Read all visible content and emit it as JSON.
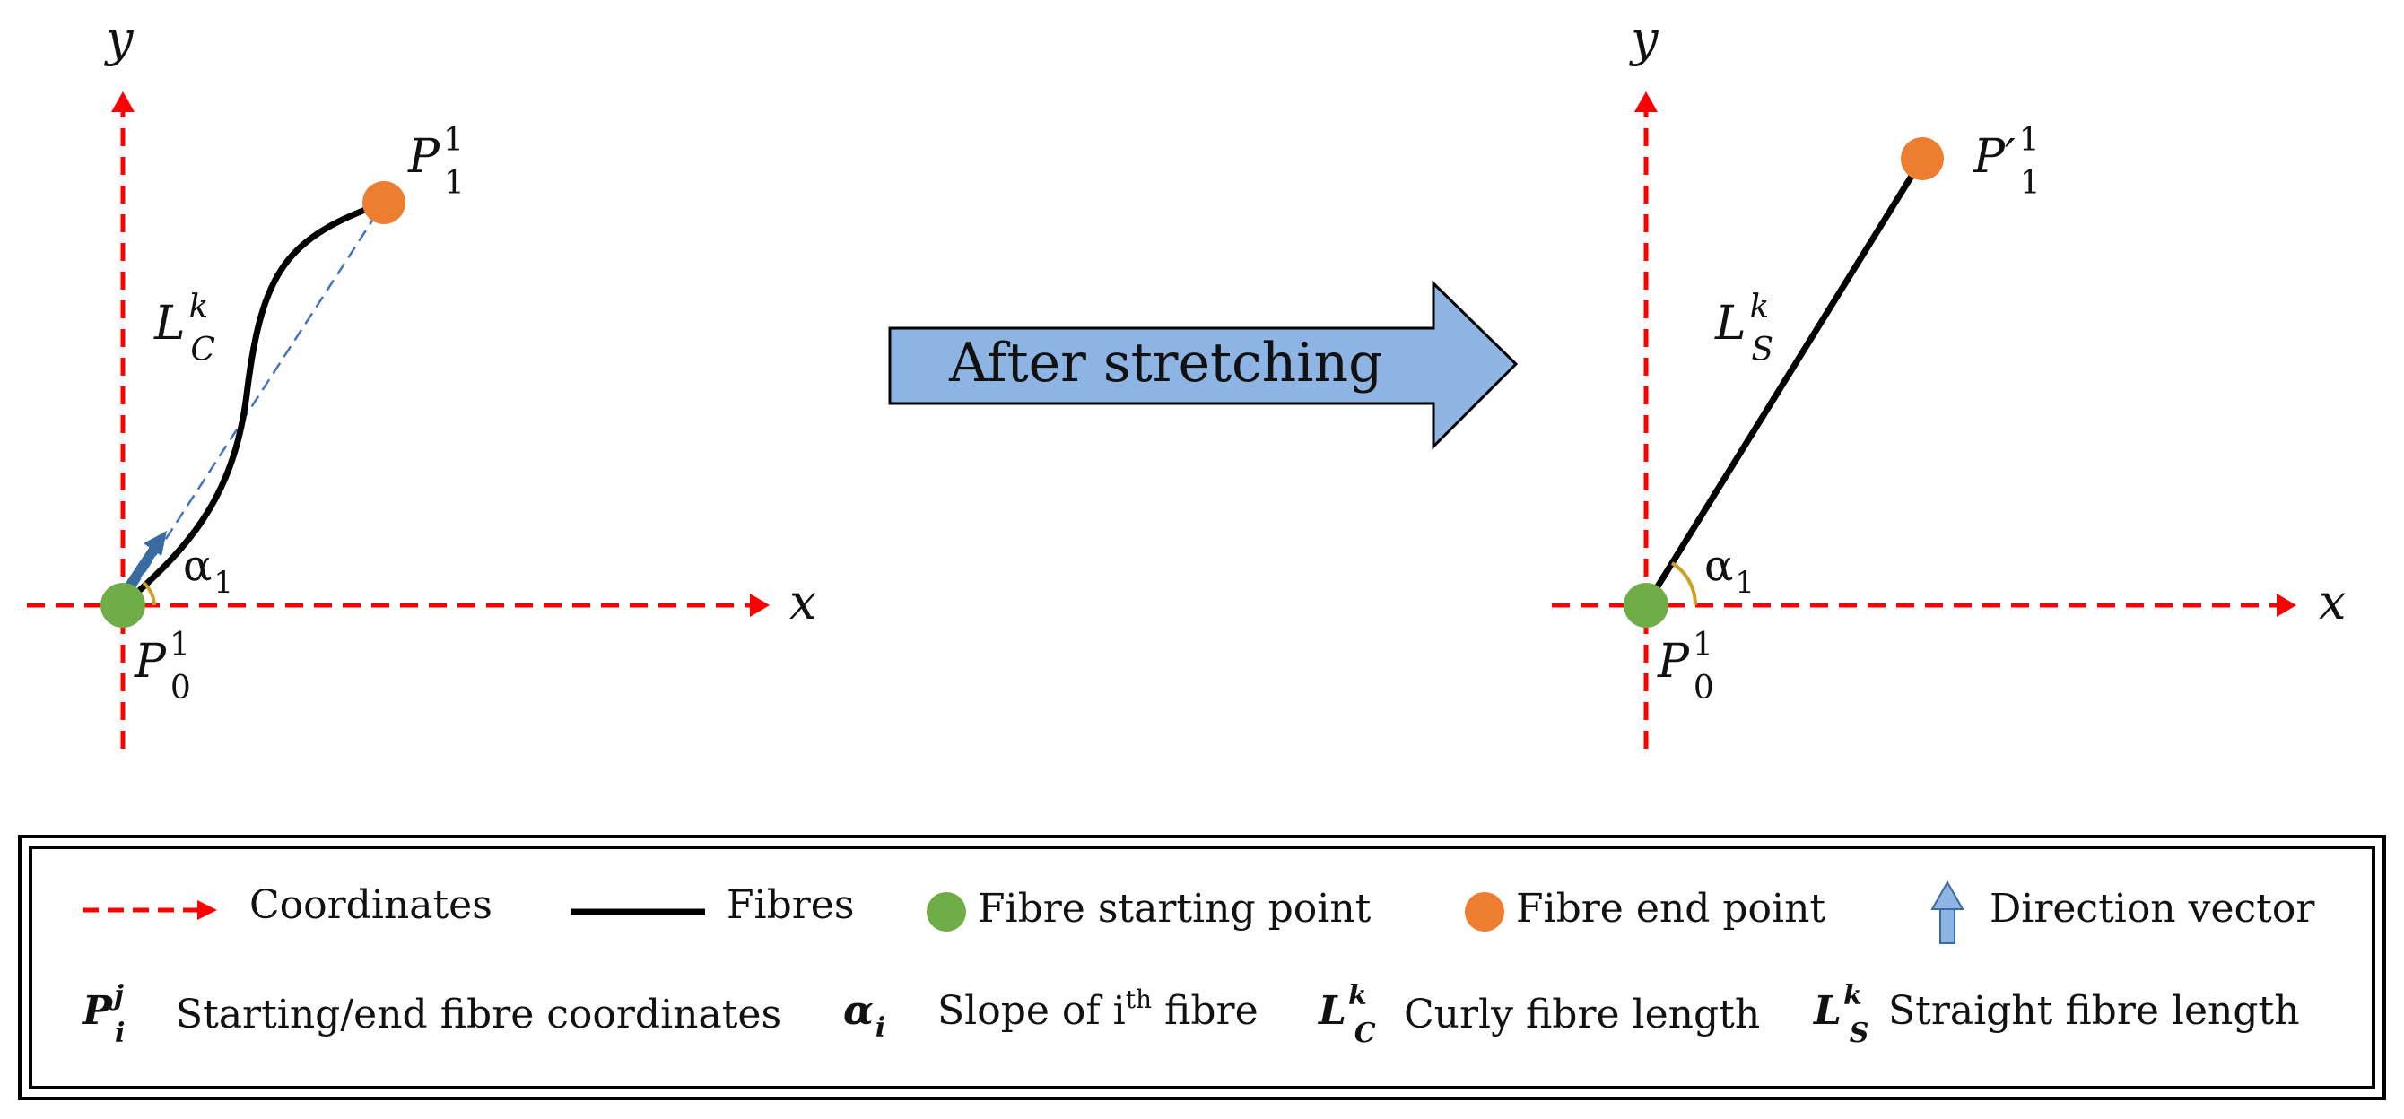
{
  "left_panel": {
    "axis_x": "x",
    "axis_y": "y",
    "end_point": {
      "symbol": "P",
      "sup": "1",
      "sub": "1"
    },
    "start_point": {
      "symbol": "P",
      "sup": "1",
      "sub": "0"
    },
    "length": {
      "symbol": "L",
      "sup": "k",
      "sub": "C"
    },
    "angle": {
      "symbol": "α",
      "sub": "1"
    }
  },
  "arrow": {
    "label": "After stretching"
  },
  "right_panel": {
    "axis_x": "x",
    "axis_y": "y",
    "end_point": {
      "symbol": "P′",
      "sup": "1",
      "sub": "1"
    },
    "start_point": {
      "symbol": "P",
      "sup": "1",
      "sub": "0"
    },
    "length": {
      "symbol": "L",
      "sup": "k",
      "sub": "S"
    },
    "angle": {
      "symbol": "α",
      "sub": "1"
    }
  },
  "legend": {
    "row1": [
      {
        "key": "coordinates",
        "label": "Coordinates"
      },
      {
        "key": "fibres",
        "label": "Fibres"
      },
      {
        "key": "start",
        "label": "Fibre starting point"
      },
      {
        "key": "end",
        "label": "Fibre end point"
      },
      {
        "key": "direction",
        "label": "Direction vector"
      }
    ],
    "row2": [
      {
        "symbol": "P",
        "sup": "j",
        "sub": "i",
        "label": "Starting/end fibre coordinates"
      },
      {
        "symbol": "α",
        "sub": "i",
        "label_pre": "Slope of i",
        "label_sup": "th",
        "label_post": " fibre"
      },
      {
        "symbol": "L",
        "sup": "k",
        "sub": "C",
        "label": "Curly fibre length"
      },
      {
        "symbol": "L",
        "sup": "k",
        "sub": "S",
        "label": "Straight fibre length"
      }
    ]
  },
  "colors": {
    "axis": "#ff0000",
    "fibre": "#000000",
    "start_point": "#70ad47",
    "end_point": "#ed7d31",
    "arrow_fill": "#8db4e2",
    "angle_arc": "#c9a227",
    "chord": "#4472c4"
  }
}
